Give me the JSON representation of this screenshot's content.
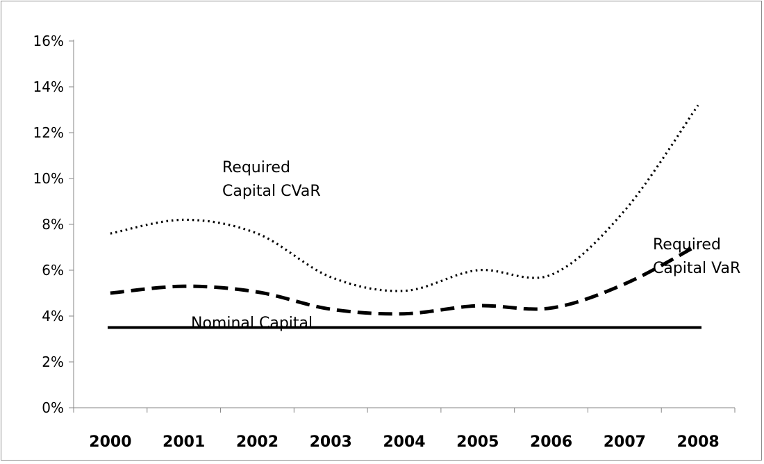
{
  "chart_data": {
    "type": "line",
    "categories": [
      "2000",
      "2001",
      "2002",
      "2003",
      "2004",
      "2005",
      "2006",
      "2007",
      "2008"
    ],
    "series": [
      {
        "name": "Required Capital CVaR",
        "label_lines": [
          "Required",
          "Capital CVaR"
        ],
        "style": "dotted",
        "values": [
          7.6,
          8.2,
          7.6,
          5.7,
          5.1,
          6.0,
          5.8,
          8.6,
          13.2
        ]
      },
      {
        "name": "Required Capital VaR",
        "label_lines": [
          "Required",
          "Capital VaR"
        ],
        "style": "dashed",
        "values": [
          5.0,
          5.3,
          5.05,
          4.3,
          4.1,
          4.45,
          4.35,
          5.4,
          7.1
        ]
      },
      {
        "name": "Nominal Capital",
        "label_lines": [
          "Nominal Capital"
        ],
        "style": "solid",
        "values": [
          3.5,
          3.5,
          3.5,
          3.5,
          3.5,
          3.5,
          3.5,
          3.5,
          3.5
        ]
      }
    ],
    "y_ticks": [
      "0%",
      "2%",
      "4%",
      "6%",
      "8%",
      "10%",
      "12%",
      "14%",
      "16%"
    ],
    "ylim": [
      0,
      16
    ],
    "y_unit": "%",
    "grid": false,
    "legend": "none (inline labels)",
    "line_color": "#000000",
    "title": "",
    "xlabel": "",
    "ylabel": ""
  }
}
